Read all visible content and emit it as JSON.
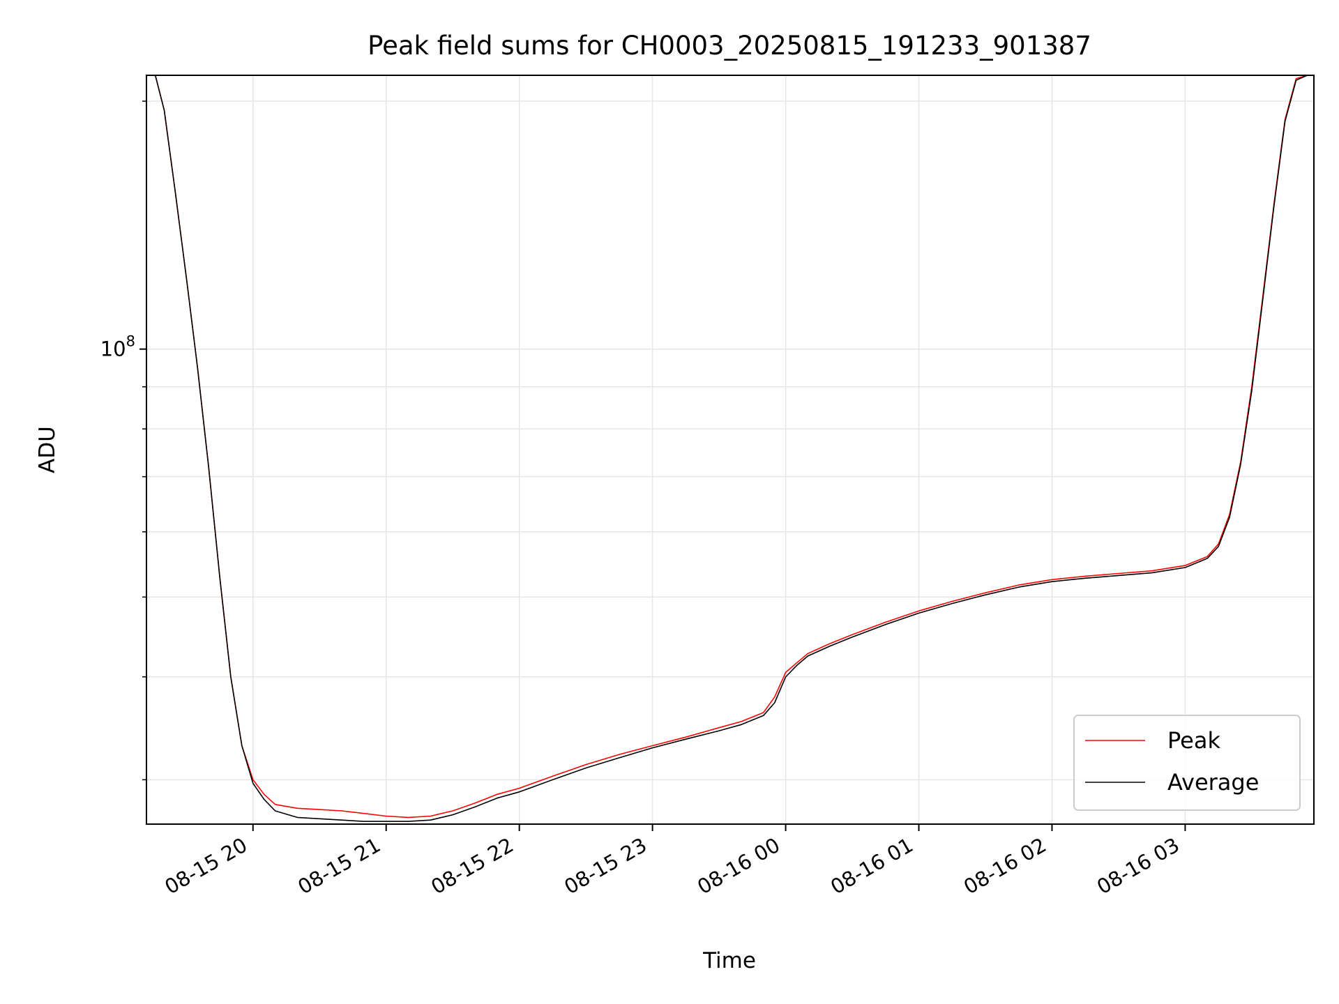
{
  "chart_data": {
    "type": "line",
    "title": "Peak field sums for CH0003_20250815_191233_901387",
    "xlabel": "Time",
    "ylabel": "ADU",
    "y_scale": "log",
    "grid": true,
    "legend_position": "lower-right",
    "x_tick_labels": [
      "08-15 20",
      "08-15 21",
      "08-15 22",
      "08-15 23",
      "08-16 00",
      "08-16 01",
      "08-16 02",
      "08-16 03"
    ],
    "x_ticks": [
      "2025-08-15 20:00",
      "2025-08-15 21:00",
      "2025-08-15 22:00",
      "2025-08-15 23:00",
      "2025-08-16 00:00",
      "2025-08-16 01:00",
      "2025-08-16 02:00",
      "2025-08-16 03:00"
    ],
    "y_tick_labels": [
      {
        "base": "10",
        "exp": "8"
      }
    ],
    "y_major_ticks": [
      100000000
    ],
    "y_minor_ticks": [
      30000000,
      40000000,
      50000000,
      60000000,
      70000000,
      80000000,
      90000000,
      200000000
    ],
    "xlim": [
      "2025-08-15 19:12",
      "2025-08-16 03:58"
    ],
    "ylim": [
      26500000,
      215000000
    ],
    "series": [
      {
        "name": "Peak",
        "color": "#ff0000",
        "x": [
          "2025-08-15 19:12",
          "2025-08-15 19:16",
          "2025-08-15 19:20",
          "2025-08-15 19:25",
          "2025-08-15 19:30",
          "2025-08-15 19:35",
          "2025-08-15 19:40",
          "2025-08-15 19:45",
          "2025-08-15 19:50",
          "2025-08-15 19:55",
          "2025-08-15 20:00",
          "2025-08-15 20:05",
          "2025-08-15 20:10",
          "2025-08-15 20:20",
          "2025-08-15 20:30",
          "2025-08-15 20:40",
          "2025-08-15 20:50",
          "2025-08-15 21:00",
          "2025-08-15 21:10",
          "2025-08-15 21:20",
          "2025-08-15 21:30",
          "2025-08-15 21:40",
          "2025-08-15 21:50",
          "2025-08-15 22:00",
          "2025-08-15 22:15",
          "2025-08-15 22:30",
          "2025-08-15 22:45",
          "2025-08-15 23:00",
          "2025-08-15 23:15",
          "2025-08-15 23:30",
          "2025-08-15 23:40",
          "2025-08-15 23:50",
          "2025-08-15 23:55",
          "2025-08-16 00:00",
          "2025-08-16 00:05",
          "2025-08-16 00:10",
          "2025-08-16 00:20",
          "2025-08-16 00:30",
          "2025-08-16 00:45",
          "2025-08-16 01:00",
          "2025-08-16 01:15",
          "2025-08-16 01:30",
          "2025-08-16 01:45",
          "2025-08-16 02:00",
          "2025-08-16 02:15",
          "2025-08-16 02:30",
          "2025-08-16 02:45",
          "2025-08-16 03:00",
          "2025-08-16 03:10",
          "2025-08-16 03:15",
          "2025-08-16 03:20",
          "2025-08-16 03:25",
          "2025-08-16 03:30",
          "2025-08-16 03:35",
          "2025-08-16 03:40",
          "2025-08-16 03:45",
          "2025-08-16 03:50",
          "2025-08-16 03:55",
          "2025-08-16 03:58"
        ],
        "values": [
          215000000,
          215000000,
          195000000,
          155000000,
          122000000,
          95000000,
          72000000,
          53000000,
          40000000,
          33000000,
          30000000,
          28800000,
          28000000,
          27700000,
          27600000,
          27500000,
          27300000,
          27100000,
          27000000,
          27100000,
          27500000,
          28100000,
          28800000,
          29300000,
          30300000,
          31300000,
          32200000,
          33000000,
          33800000,
          34700000,
          35300000,
          36200000,
          37800000,
          40500000,
          41600000,
          42700000,
          43900000,
          45000000,
          46600000,
          48100000,
          49400000,
          50600000,
          51700000,
          52500000,
          53000000,
          53400000,
          53800000,
          54600000,
          56000000,
          58000000,
          63000000,
          73000000,
          90000000,
          116000000,
          150000000,
          190000000,
          213000000,
          215000000,
          215000000
        ]
      },
      {
        "name": "Average",
        "color": "#000000",
        "x": [
          "2025-08-15 19:12",
          "2025-08-15 19:16",
          "2025-08-15 19:20",
          "2025-08-15 19:25",
          "2025-08-15 19:30",
          "2025-08-15 19:35",
          "2025-08-15 19:40",
          "2025-08-15 19:45",
          "2025-08-15 19:50",
          "2025-08-15 19:55",
          "2025-08-15 20:00",
          "2025-08-15 20:05",
          "2025-08-15 20:10",
          "2025-08-15 20:20",
          "2025-08-15 20:30",
          "2025-08-15 20:40",
          "2025-08-15 20:50",
          "2025-08-15 21:00",
          "2025-08-15 21:10",
          "2025-08-15 21:20",
          "2025-08-15 21:30",
          "2025-08-15 21:40",
          "2025-08-15 21:50",
          "2025-08-15 22:00",
          "2025-08-15 22:15",
          "2025-08-15 22:30",
          "2025-08-15 22:45",
          "2025-08-15 23:00",
          "2025-08-15 23:15",
          "2025-08-15 23:30",
          "2025-08-15 23:40",
          "2025-08-15 23:50",
          "2025-08-15 23:55",
          "2025-08-16 00:00",
          "2025-08-16 00:05",
          "2025-08-16 00:10",
          "2025-08-16 00:20",
          "2025-08-16 00:30",
          "2025-08-16 00:45",
          "2025-08-16 01:00",
          "2025-08-16 01:15",
          "2025-08-16 01:30",
          "2025-08-16 01:45",
          "2025-08-16 02:00",
          "2025-08-16 02:15",
          "2025-08-16 02:30",
          "2025-08-16 02:45",
          "2025-08-16 03:00",
          "2025-08-16 03:10",
          "2025-08-16 03:15",
          "2025-08-16 03:20",
          "2025-08-16 03:25",
          "2025-08-16 03:30",
          "2025-08-16 03:35",
          "2025-08-16 03:40",
          "2025-08-16 03:45",
          "2025-08-16 03:50",
          "2025-08-16 03:55",
          "2025-08-16 03:58"
        ],
        "values": [
          215000000,
          215000000,
          195000000,
          155000000,
          122000000,
          95000000,
          72000000,
          53000000,
          40000000,
          33000000,
          29700000,
          28400000,
          27500000,
          27000000,
          26900000,
          26800000,
          26700000,
          26700000,
          26700000,
          26800000,
          27200000,
          27800000,
          28500000,
          29000000,
          30000000,
          31000000,
          31900000,
          32800000,
          33600000,
          34400000,
          35000000,
          35900000,
          37200000,
          40000000,
          41300000,
          42400000,
          43600000,
          44700000,
          46300000,
          47800000,
          49100000,
          50300000,
          51400000,
          52200000,
          52700000,
          53100000,
          53500000,
          54300000,
          55700000,
          57600000,
          62500000,
          72500000,
          89000000,
          115000000,
          149000000,
          189000000,
          212000000,
          215000000,
          215000000
        ]
      }
    ]
  }
}
